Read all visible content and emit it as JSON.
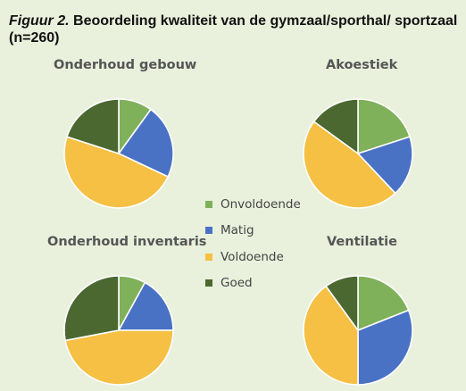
{
  "figure": {
    "label": "Figuur 2.",
    "title": "Beoordeling kwaliteit van de gymzaal/sporthal/ sportzaal (n=260)"
  },
  "colors": {
    "Onvoldoende": "#7fb05a",
    "Matig": "#4a72c4",
    "Voldoende": "#f5c043",
    "Goed": "#4a6830"
  },
  "legend": [
    "Onvoldoende",
    "Matig",
    "Voldoende",
    "Goed"
  ],
  "chart_data": [
    {
      "type": "pie",
      "title": "Onderhoud gebouw",
      "categories": [
        "Onvoldoende",
        "Matig",
        "Voldoende",
        "Goed"
      ],
      "values": [
        10,
        22,
        48,
        20
      ]
    },
    {
      "type": "pie",
      "title": "Akoestiek",
      "categories": [
        "Onvoldoende",
        "Matig",
        "Voldoende",
        "Goed"
      ],
      "values": [
        20,
        18,
        47,
        15
      ]
    },
    {
      "type": "pie",
      "title": "Onderhoud inventaris",
      "categories": [
        "Onvoldoende",
        "Matig",
        "Voldoende",
        "Goed"
      ],
      "values": [
        8,
        17,
        47,
        28
      ]
    },
    {
      "type": "pie",
      "title": "Ventilatie",
      "categories": [
        "Onvoldoende",
        "Matig",
        "Voldoende",
        "Goed"
      ],
      "values": [
        19,
        31,
        40,
        10
      ]
    }
  ]
}
